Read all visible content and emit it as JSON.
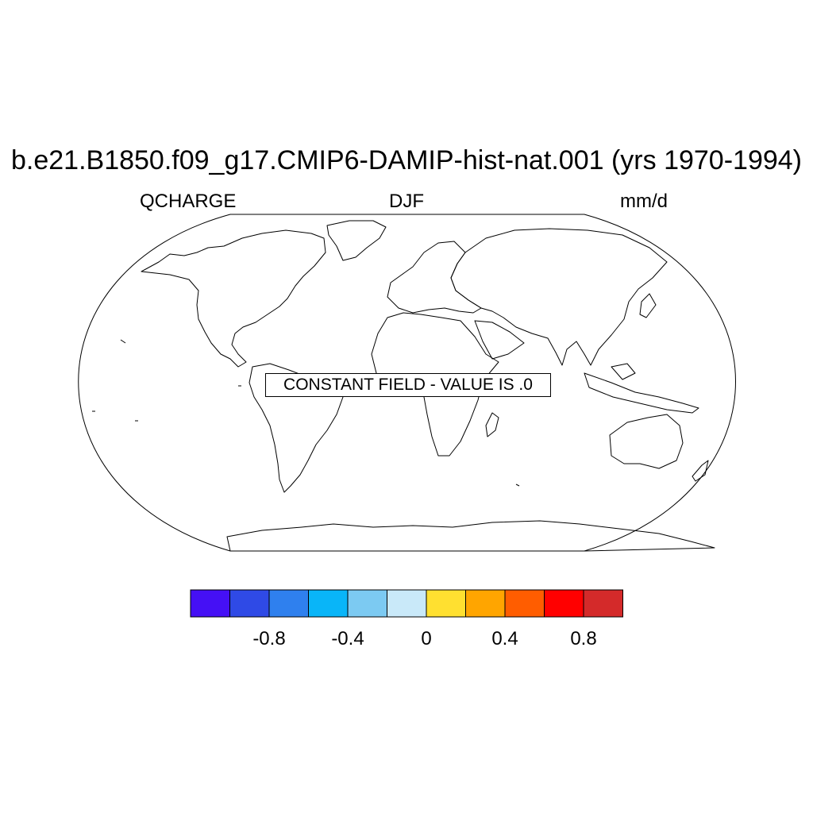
{
  "title": "b.e21.B1850.f09_g17.CMIP6-DAMIP-hist-nat.001 (yrs 1970-1994)",
  "left_label": "QCHARGE",
  "center_label": "DJF",
  "right_label": "mm/d",
  "message": "CONSTANT FIELD - VALUE IS .0",
  "projection": "robinson",
  "colorbar": {
    "colors": [
      "#4510f5",
      "#2f4ae6",
      "#2f80ee",
      "#09b5f8",
      "#7ccaf2",
      "#c9e9f9",
      "#ffe030",
      "#ffa500",
      "#ff5d00",
      "#ff0000",
      "#d42a2a"
    ],
    "tick_labels": [
      "-0.8",
      "-0.4",
      "0",
      "0.4",
      "0.8"
    ]
  }
}
